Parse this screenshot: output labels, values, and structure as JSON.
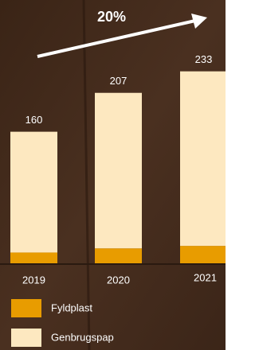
{
  "chart_data": {
    "type": "stacked-bar",
    "annotation": "20%",
    "categories": [
      "2019",
      "2020",
      "2021"
    ],
    "series": [
      {
        "name": "Fyldplast",
        "color": "#e89c00",
        "values": [
          14,
          19,
          22
        ]
      },
      {
        "name": "Genbrugspap",
        "color": "#fde8c0",
        "values": [
          146,
          188,
          211
        ]
      }
    ],
    "totals": [
      160,
      207,
      233
    ],
    "ylim": [
      0,
      250
    ]
  }
}
